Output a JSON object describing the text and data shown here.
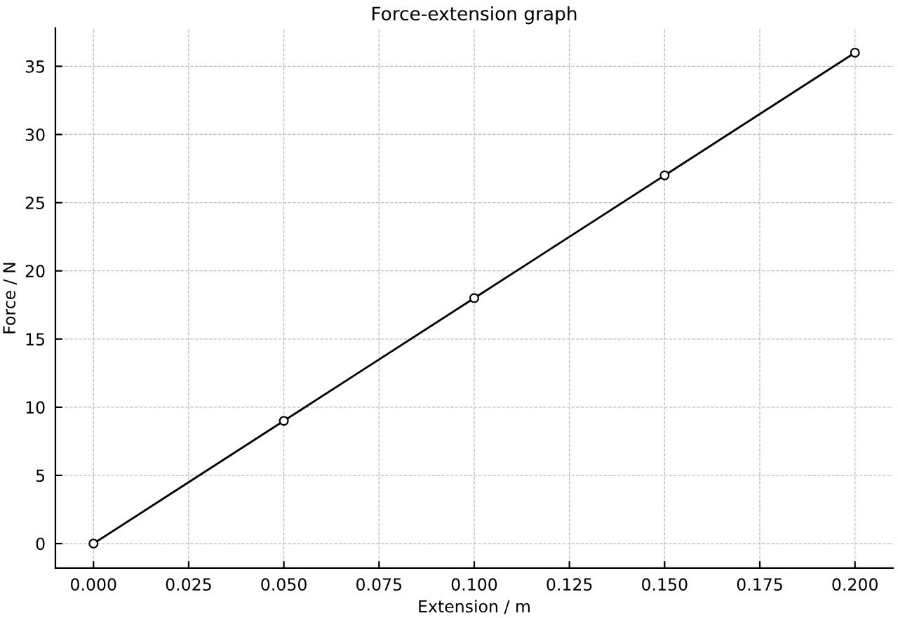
{
  "chart_data": {
    "type": "line",
    "title": "Force-extension graph",
    "xlabel": "Extension / m",
    "ylabel": "Force / N",
    "x": [
      0,
      0.05,
      0.1,
      0.15,
      0.2
    ],
    "series": [
      {
        "color": "#000000",
        "values": [
          0,
          9,
          18,
          27,
          36
        ]
      }
    ],
    "xlim": [
      -0.01,
      0.21
    ],
    "ylim": [
      -1.8,
      37.8
    ],
    "xticks": [
      {
        "value": 0,
        "label": "0.000"
      },
      {
        "value": 0.025,
        "label": "0.025"
      },
      {
        "value": 0.05,
        "label": "0.050"
      },
      {
        "value": 0.075,
        "label": "0.075"
      },
      {
        "value": 0.1,
        "label": "0.100"
      },
      {
        "value": 0.125,
        "label": "0.125"
      },
      {
        "value": 0.15,
        "label": "0.150"
      },
      {
        "value": 0.175,
        "label": "0.175"
      },
      {
        "value": 0.2,
        "label": "0.200"
      }
    ],
    "yticks": [
      0,
      5,
      10,
      15,
      20,
      25,
      30,
      35
    ],
    "grid": true,
    "marker": "circle",
    "line_style": "solid"
  }
}
